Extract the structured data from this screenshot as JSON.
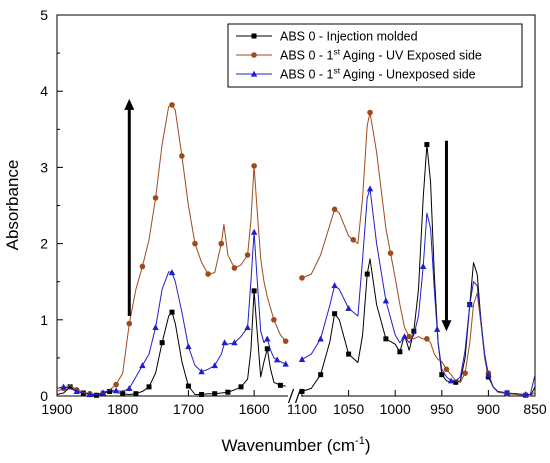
{
  "chart_data": {
    "type": "line",
    "title": "",
    "xlabel": "Wavenumber (cm",
    "xlabel_sup": "-1",
    "xlabel_end": ")",
    "ylabel": "Absorbance",
    "ylim": [
      0,
      5
    ],
    "yticks": [
      "0",
      "1",
      "2",
      "3",
      "4",
      "5"
    ],
    "x_broken_axis": true,
    "x_segments": [
      {
        "range": [
          1900,
          1550
        ],
        "ticks": [
          1900,
          1800,
          1700,
          1600
        ]
      },
      {
        "range": [
          1100,
          850
        ],
        "ticks": [
          1100,
          1050,
          1000,
          950,
          900,
          850
        ]
      }
    ],
    "break_marker": "//",
    "legend_position": "top-right",
    "legend": [
      {
        "prefix": "ABS 0 - Injection molded",
        "sup": "",
        "suffix": ""
      },
      {
        "prefix": "ABS 0 - 1",
        "sup": "st",
        "suffix": " Aging - UV Exposed side"
      },
      {
        "prefix": "ABS 0 - 1",
        "sup": "st",
        "suffix": " Aging - Unexposed side"
      }
    ],
    "annotations": [
      {
        "type": "arrow",
        "direction": "up",
        "x": 1790,
        "y_from": 1.05,
        "y_to": 3.9
      },
      {
        "type": "arrow",
        "direction": "down",
        "x": 945,
        "y_from": 3.35,
        "y_to": 0.85
      }
    ],
    "series": [
      {
        "color": "#000000",
        "marker": "square",
        "points": [
          [
            1900,
            0.02
          ],
          [
            1890,
            0.04
          ],
          [
            1880,
            0.12
          ],
          [
            1870,
            0.06
          ],
          [
            1860,
            0.04
          ],
          [
            1850,
            0.02
          ],
          [
            1840,
            0.01
          ],
          [
            1830,
            0.03
          ],
          [
            1820,
            0.06
          ],
          [
            1810,
            0.05
          ],
          [
            1800,
            0.03
          ],
          [
            1790,
            0.02
          ],
          [
            1780,
            0.03
          ],
          [
            1770,
            0.06
          ],
          [
            1760,
            0.12
          ],
          [
            1750,
            0.3
          ],
          [
            1740,
            0.7
          ],
          [
            1730,
            1.05
          ],
          [
            1725,
            1.1
          ],
          [
            1720,
            0.95
          ],
          [
            1710,
            0.45
          ],
          [
            1700,
            0.13
          ],
          [
            1690,
            0.02
          ],
          [
            1680,
            0.02
          ],
          [
            1670,
            0.03
          ],
          [
            1660,
            0.03
          ],
          [
            1650,
            0.04
          ],
          [
            1640,
            0.05
          ],
          [
            1630,
            0.08
          ],
          [
            1620,
            0.12
          ],
          [
            1610,
            0.22
          ],
          [
            1605,
            0.6
          ],
          [
            1600,
            1.38
          ],
          [
            1596,
            0.9
          ],
          [
            1590,
            0.25
          ],
          [
            1585,
            0.45
          ],
          [
            1580,
            0.62
          ],
          [
            1575,
            0.35
          ],
          [
            1570,
            0.18
          ],
          [
            1560,
            0.14
          ],
          [
            1552,
            0.13
          ],
          [
            1100,
            0.06
          ],
          [
            1090,
            0.1
          ],
          [
            1080,
            0.28
          ],
          [
            1070,
            0.72
          ],
          [
            1065,
            1.08
          ],
          [
            1060,
            1.0
          ],
          [
            1050,
            0.55
          ],
          [
            1040,
            0.44
          ],
          [
            1035,
            0.8
          ],
          [
            1030,
            1.6
          ],
          [
            1027,
            1.8
          ],
          [
            1020,
            1.2
          ],
          [
            1010,
            0.75
          ],
          [
            1000,
            0.68
          ],
          [
            995,
            0.58
          ],
          [
            990,
            0.8
          ],
          [
            985,
            0.6
          ],
          [
            980,
            0.85
          ],
          [
            975,
            1.4
          ],
          [
            970,
            2.6
          ],
          [
            966,
            3.3
          ],
          [
            962,
            2.8
          ],
          [
            958,
            1.6
          ],
          [
            954,
            0.7
          ],
          [
            950,
            0.28
          ],
          [
            945,
            0.2
          ],
          [
            940,
            0.18
          ],
          [
            935,
            0.18
          ],
          [
            930,
            0.2
          ],
          [
            925,
            0.5
          ],
          [
            920,
            1.2
          ],
          [
            916,
            1.75
          ],
          [
            912,
            1.6
          ],
          [
            908,
            1.0
          ],
          [
            904,
            0.5
          ],
          [
            900,
            0.25
          ],
          [
            895,
            0.12
          ],
          [
            890,
            0.06
          ],
          [
            880,
            0.04
          ],
          [
            870,
            0.03
          ],
          [
            860,
            0.01
          ],
          [
            855,
            0.0
          ],
          [
            850,
            0.12
          ]
        ]
      },
      {
        "color": "#a04a1c",
        "marker": "circle",
        "points": [
          [
            1900,
            0.06
          ],
          [
            1890,
            0.1
          ],
          [
            1880,
            0.14
          ],
          [
            1870,
            0.08
          ],
          [
            1860,
            0.05
          ],
          [
            1850,
            0.03
          ],
          [
            1840,
            0.02
          ],
          [
            1830,
            0.04
          ],
          [
            1820,
            0.08
          ],
          [
            1810,
            0.15
          ],
          [
            1800,
            0.3
          ],
          [
            1790,
            0.95
          ],
          [
            1780,
            1.4
          ],
          [
            1770,
            1.7
          ],
          [
            1760,
            2.05
          ],
          [
            1750,
            2.6
          ],
          [
            1740,
            3.3
          ],
          [
            1730,
            3.8
          ],
          [
            1725,
            3.82
          ],
          [
            1720,
            3.75
          ],
          [
            1710,
            3.15
          ],
          [
            1700,
            2.5
          ],
          [
            1690,
            2.0
          ],
          [
            1680,
            1.75
          ],
          [
            1670,
            1.6
          ],
          [
            1660,
            1.62
          ],
          [
            1650,
            2.0
          ],
          [
            1646,
            2.25
          ],
          [
            1640,
            1.85
          ],
          [
            1630,
            1.68
          ],
          [
            1620,
            1.72
          ],
          [
            1610,
            1.85
          ],
          [
            1605,
            2.3
          ],
          [
            1600,
            3.02
          ],
          [
            1596,
            2.5
          ],
          [
            1590,
            1.8
          ],
          [
            1585,
            1.5
          ],
          [
            1580,
            1.3
          ],
          [
            1570,
            1.0
          ],
          [
            1560,
            0.8
          ],
          [
            1552,
            0.72
          ],
          [
            1100,
            1.55
          ],
          [
            1090,
            1.6
          ],
          [
            1080,
            1.85
          ],
          [
            1070,
            2.25
          ],
          [
            1065,
            2.45
          ],
          [
            1060,
            2.4
          ],
          [
            1050,
            2.1
          ],
          [
            1040,
            2.0
          ],
          [
            1035,
            2.6
          ],
          [
            1030,
            3.55
          ],
          [
            1027,
            3.72
          ],
          [
            1020,
            3.2
          ],
          [
            1010,
            2.2
          ],
          [
            1000,
            1.55
          ],
          [
            995,
            1.2
          ],
          [
            990,
            0.9
          ],
          [
            985,
            0.78
          ],
          [
            980,
            0.75
          ],
          [
            975,
            0.78
          ],
          [
            970,
            0.75
          ],
          [
            966,
            0.75
          ],
          [
            962,
            0.7
          ],
          [
            958,
            0.55
          ],
          [
            954,
            0.48
          ],
          [
            950,
            0.45
          ],
          [
            945,
            0.35
          ],
          [
            940,
            0.28
          ],
          [
            935,
            0.2
          ],
          [
            930,
            0.18
          ],
          [
            925,
            0.3
          ],
          [
            920,
            0.7
          ],
          [
            916,
            1.2
          ],
          [
            912,
            1.35
          ],
          [
            908,
            0.95
          ],
          [
            904,
            0.5
          ],
          [
            900,
            0.3
          ],
          [
            895,
            0.12
          ],
          [
            890,
            0.05
          ],
          [
            880,
            0.03
          ],
          [
            870,
            0.02
          ],
          [
            860,
            0.01
          ],
          [
            855,
            0.0
          ],
          [
            850,
            0.05
          ]
        ]
      },
      {
        "color": "#2020c8",
        "marker": "triangle",
        "points": [
          [
            1900,
            0.1
          ],
          [
            1890,
            0.12
          ],
          [
            1880,
            0.1
          ],
          [
            1870,
            0.06
          ],
          [
            1860,
            0.04
          ],
          [
            1850,
            0.02
          ],
          [
            1840,
            0.02
          ],
          [
            1830,
            0.04
          ],
          [
            1820,
            0.08
          ],
          [
            1810,
            0.07
          ],
          [
            1800,
            0.06
          ],
          [
            1790,
            0.1
          ],
          [
            1780,
            0.25
          ],
          [
            1770,
            0.4
          ],
          [
            1760,
            0.55
          ],
          [
            1750,
            0.9
          ],
          [
            1740,
            1.4
          ],
          [
            1730,
            1.63
          ],
          [
            1725,
            1.62
          ],
          [
            1720,
            1.5
          ],
          [
            1710,
            1.1
          ],
          [
            1700,
            0.65
          ],
          [
            1690,
            0.4
          ],
          [
            1680,
            0.32
          ],
          [
            1670,
            0.35
          ],
          [
            1660,
            0.4
          ],
          [
            1650,
            0.55
          ],
          [
            1645,
            0.7
          ],
          [
            1640,
            0.68
          ],
          [
            1630,
            0.7
          ],
          [
            1620,
            0.78
          ],
          [
            1610,
            0.9
          ],
          [
            1605,
            1.5
          ],
          [
            1600,
            2.15
          ],
          [
            1596,
            1.6
          ],
          [
            1590,
            0.85
          ],
          [
            1585,
            0.7
          ],
          [
            1580,
            0.75
          ],
          [
            1575,
            0.6
          ],
          [
            1570,
            0.5
          ],
          [
            1560,
            0.45
          ],
          [
            1552,
            0.42
          ],
          [
            1100,
            0.48
          ],
          [
            1090,
            0.55
          ],
          [
            1080,
            0.75
          ],
          [
            1070,
            1.2
          ],
          [
            1065,
            1.45
          ],
          [
            1060,
            1.4
          ],
          [
            1050,
            1.15
          ],
          [
            1040,
            1.05
          ],
          [
            1035,
            1.8
          ],
          [
            1030,
            2.6
          ],
          [
            1027,
            2.72
          ],
          [
            1020,
            2.0
          ],
          [
            1010,
            1.25
          ],
          [
            1000,
            0.8
          ],
          [
            995,
            0.7
          ],
          [
            990,
            0.78
          ],
          [
            985,
            0.7
          ],
          [
            980,
            0.8
          ],
          [
            975,
            1.05
          ],
          [
            970,
            1.7
          ],
          [
            966,
            2.4
          ],
          [
            962,
            2.2
          ],
          [
            958,
            1.4
          ],
          [
            954,
            0.7
          ],
          [
            950,
            0.35
          ],
          [
            945,
            0.25
          ],
          [
            940,
            0.2
          ],
          [
            935,
            0.2
          ],
          [
            930,
            0.25
          ],
          [
            925,
            0.6
          ],
          [
            920,
            1.2
          ],
          [
            916,
            1.5
          ],
          [
            912,
            1.45
          ],
          [
            908,
            1.0
          ],
          [
            904,
            0.55
          ],
          [
            900,
            0.28
          ],
          [
            895,
            0.12
          ],
          [
            890,
            0.06
          ],
          [
            880,
            0.04
          ],
          [
            870,
            0.03
          ],
          [
            860,
            0.02
          ],
          [
            855,
            0.02
          ],
          [
            850,
            0.28
          ]
        ]
      }
    ],
    "marker_x": [
      [
        1880,
        1860,
        1840,
        1820,
        1800,
        1780,
        1760,
        1740,
        1725,
        1700,
        1680,
        1660,
        1640,
        1620,
        1600,
        1580,
        1560,
        1100,
        1080,
        1065,
        1050,
        1030,
        1010,
        995,
        980,
        966,
        950,
        935,
        920,
        900,
        880,
        860
      ],
      [
        1890,
        1870,
        1850,
        1830,
        1810,
        1790,
        1770,
        1750,
        1725,
        1710,
        1690,
        1670,
        1650,
        1630,
        1610,
        1600,
        1570,
        1552,
        1100,
        1065,
        1045,
        1027,
        1005,
        985,
        966,
        945,
        925,
        900,
        880,
        860
      ],
      [
        1890,
        1870,
        1850,
        1830,
        1810,
        1790,
        1770,
        1750,
        1725,
        1700,
        1680,
        1660,
        1645,
        1630,
        1610,
        1600,
        1580,
        1565,
        1552,
        1100,
        1080,
        1065,
        1050,
        1027,
        1010,
        990,
        970,
        955,
        940,
        920,
        900,
        880,
        860
      ]
    ]
  }
}
